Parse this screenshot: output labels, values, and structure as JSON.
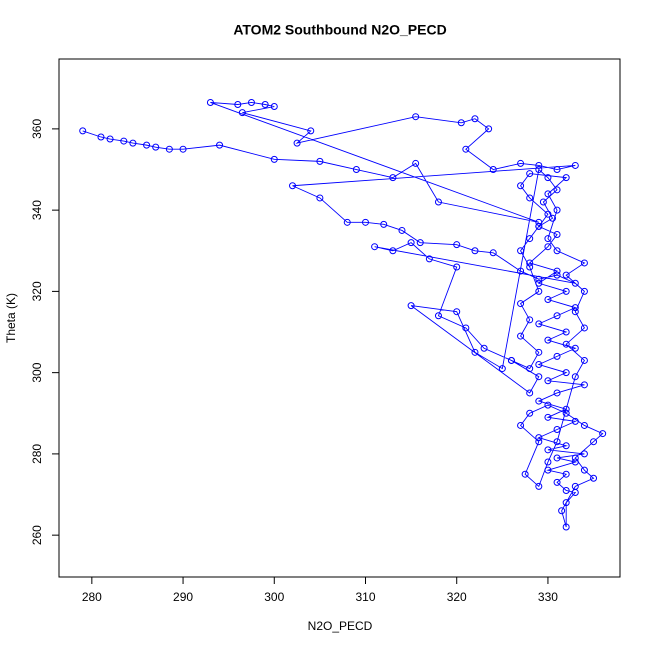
{
  "chart_data": {
    "type": "line",
    "title": "ATOM2 Southbound N2O_PECD",
    "x_label": "N2O_PECD",
    "y_label": "Theta (K)",
    "color": "#0000ff",
    "markers": true,
    "xlim": [
      276.4,
      337.9
    ],
    "ylim": [
      249.7,
      377.2
    ],
    "xticks": [
      280,
      290,
      300,
      310,
      320,
      330
    ],
    "yticks": [
      260,
      280,
      300,
      320,
      340,
      360
    ],
    "x": [
      279,
      281,
      282,
      283.5,
      284.5,
      286,
      287,
      288.5,
      290,
      294,
      300,
      305,
      309,
      313,
      315.5,
      318,
      329,
      293,
      296,
      297.5,
      299,
      300,
      296.5,
      304,
      302.5,
      315.5,
      320.5,
      322,
      323.5,
      321,
      324,
      327,
      329,
      331,
      333,
      302,
      305,
      308,
      310,
      312,
      314,
      316,
      320,
      322,
      324,
      327,
      329,
      331,
      333,
      311,
      313,
      315,
      317,
      320,
      318,
      321,
      323,
      326,
      329,
      328,
      315,
      320,
      322,
      325,
      329,
      330,
      331,
      329.5,
      330.5,
      329,
      331,
      330,
      328,
      331,
      329,
      332,
      330,
      333,
      331,
      329,
      332,
      330,
      333,
      331,
      329,
      332,
      330,
      334,
      331,
      329,
      332,
      330,
      333,
      331,
      329,
      332,
      330,
      334,
      331,
      333,
      330,
      332,
      331,
      332,
      333,
      332,
      332,
      331.5,
      333,
      335,
      334,
      333,
      335,
      336,
      334,
      332,
      330,
      328,
      327,
      329,
      327.5,
      329,
      330,
      331,
      333,
      334,
      332,
      334,
      333,
      334,
      332,
      334,
      331,
      330,
      331,
      330,
      332,
      328,
      327,
      328,
      330,
      329,
      328,
      327,
      328,
      329,
      327,
      328,
      327,
      329,
      328,
      326
    ],
    "values": [
      359.5,
      358,
      357.5,
      357,
      356.5,
      356,
      355.5,
      355,
      355,
      356,
      352.5,
      352,
      350,
      348,
      351.5,
      342,
      337,
      366.5,
      366,
      366.5,
      366,
      365.5,
      364,
      359.5,
      356.5,
      363,
      361.5,
      362.5,
      360,
      355,
      350,
      351.5,
      351,
      350,
      351,
      346,
      343,
      337,
      337,
      336.5,
      335,
      332,
      331.5,
      330,
      329.5,
      325,
      323,
      324,
      322,
      331,
      330,
      332,
      328,
      326,
      314,
      311,
      306,
      303,
      299,
      295,
      316.5,
      315,
      305,
      301,
      350,
      348,
      345,
      342,
      338,
      336,
      334,
      331,
      327,
      325,
      322,
      320,
      318,
      316,
      314,
      312,
      310,
      308,
      306,
      304,
      302,
      300,
      298,
      297,
      295,
      293,
      291,
      289,
      288,
      286,
      284,
      282,
      281,
      280,
      279,
      278,
      276,
      275,
      273,
      271,
      270.5,
      268,
      262,
      266,
      272,
      274,
      276,
      279,
      283,
      285,
      287,
      290,
      292,
      290,
      287,
      283,
      275,
      272,
      278,
      283,
      299,
      303,
      307,
      311,
      315,
      320,
      324,
      327,
      330,
      333,
      340,
      344,
      348,
      349,
      346,
      343,
      339,
      336,
      333,
      330,
      326,
      320,
      317,
      313,
      309,
      305,
      301,
      303
    ]
  }
}
